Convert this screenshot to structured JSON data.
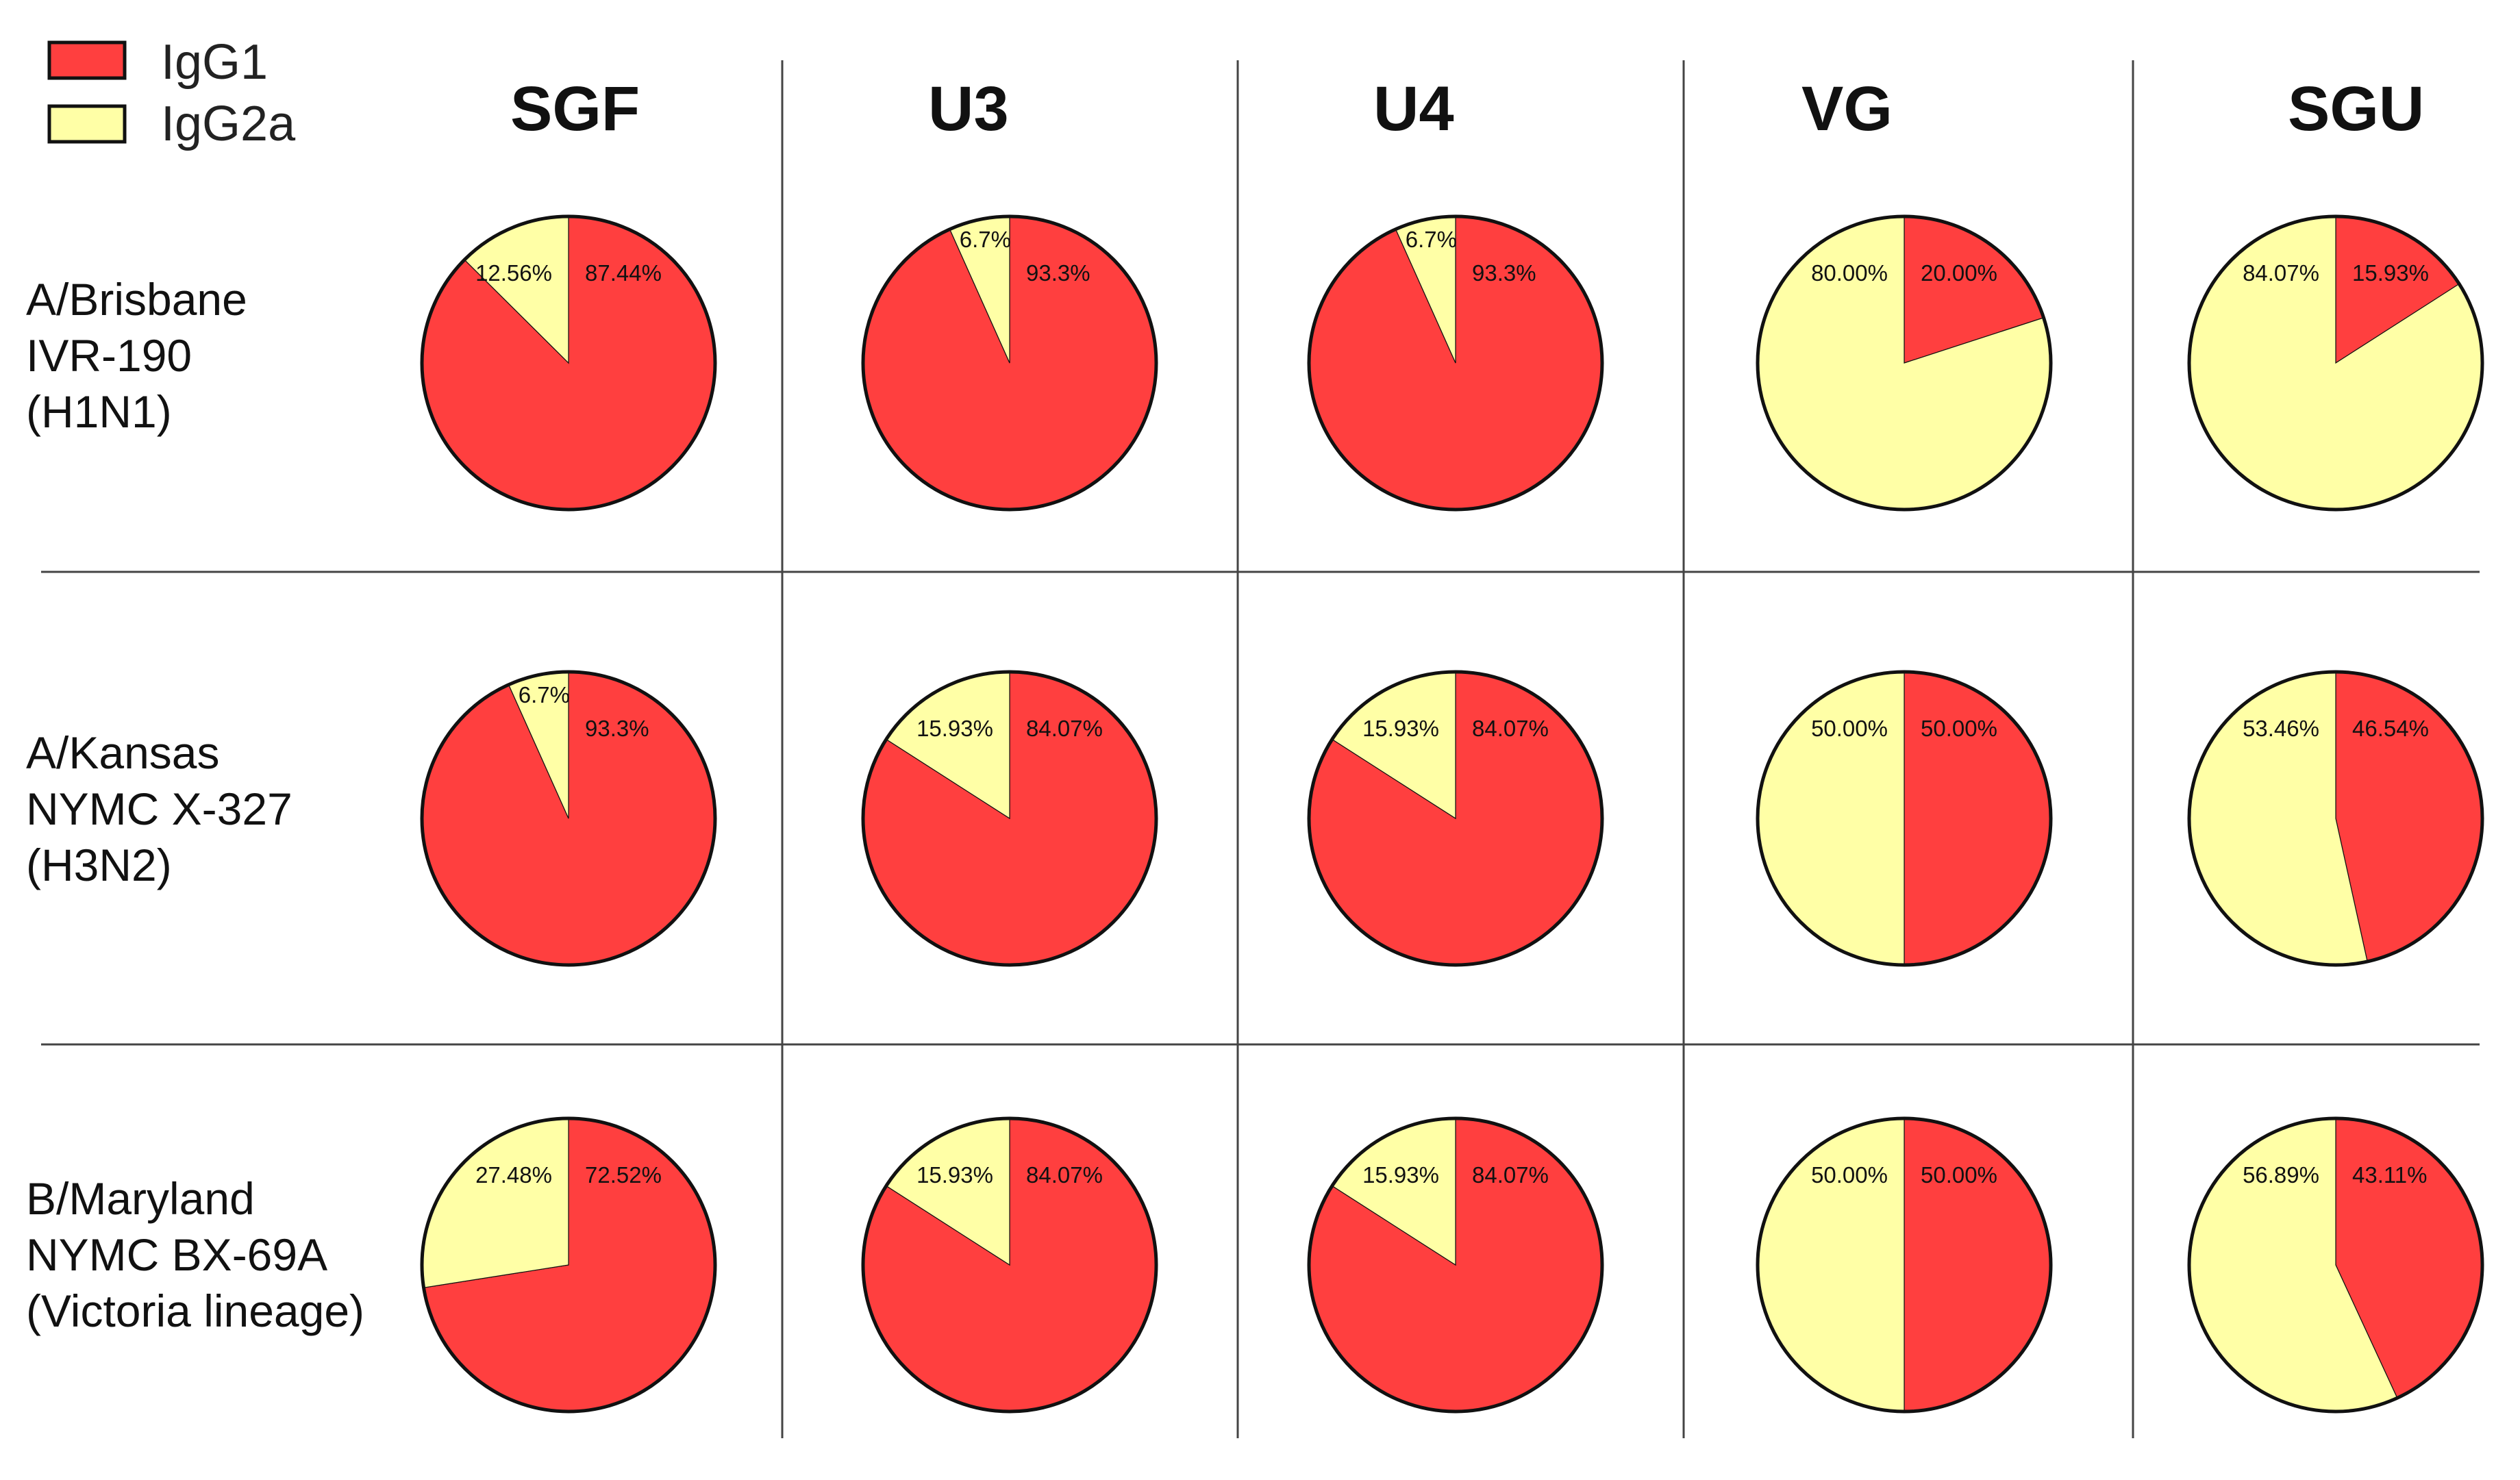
{
  "colors": {
    "IgG1": "#ff3f3f",
    "IgG2a": "#ffffa6"
  },
  "chart_data": {
    "type": "pie",
    "title": "",
    "legend": [
      "IgG1",
      "IgG2a"
    ],
    "legend_position": "top-left",
    "columns": [
      "SGF",
      "U3",
      "U4",
      "VG",
      "SGU"
    ],
    "rows": [
      {
        "label_lines": [
          "A/Brisbane",
          "IVR-190",
          "(H1N1)"
        ]
      },
      {
        "label_lines": [
          "A/Kansas",
          "NYMC X-327",
          "(H3N2)"
        ]
      },
      {
        "label_lines": [
          "B/Maryland",
          "NYMC BX-69A",
          "(Victoria lineage)"
        ]
      }
    ],
    "pies": [
      [
        {
          "IgG1": 87.44,
          "IgG2a": 12.56,
          "IgG1_label": "87.44%",
          "IgG2a_label": "12.56%"
        },
        {
          "IgG1": 93.3,
          "IgG2a": 6.7,
          "IgG1_label": "93.3%",
          "IgG2a_label": "6.7%"
        },
        {
          "IgG1": 93.3,
          "IgG2a": 6.7,
          "IgG1_label": "93.3%",
          "IgG2a_label": "6.7%"
        },
        {
          "IgG1": 20.0,
          "IgG2a": 80.0,
          "IgG1_label": "20.00%",
          "IgG2a_label": "80.00%"
        },
        {
          "IgG1": 15.93,
          "IgG2a": 84.07,
          "IgG1_label": "15.93%",
          "IgG2a_label": "84.07%"
        }
      ],
      [
        {
          "IgG1": 93.3,
          "IgG2a": 6.7,
          "IgG1_label": "93.3%",
          "IgG2a_label": "6.7%"
        },
        {
          "IgG1": 84.07,
          "IgG2a": 15.93,
          "IgG1_label": "84.07%",
          "IgG2a_label": "15.93%"
        },
        {
          "IgG1": 84.07,
          "IgG2a": 15.93,
          "IgG1_label": "84.07%",
          "IgG2a_label": "15.93%"
        },
        {
          "IgG1": 50.0,
          "IgG2a": 50.0,
          "IgG1_label": "50.00%",
          "IgG2a_label": "50.00%"
        },
        {
          "IgG1": 46.54,
          "IgG2a": 53.46,
          "IgG1_label": "46.54%",
          "IgG2a_label": "53.46%"
        }
      ],
      [
        {
          "IgG1": 72.52,
          "IgG2a": 27.48,
          "IgG1_label": "72.52%",
          "IgG2a_label": "27.48%"
        },
        {
          "IgG1": 84.07,
          "IgG2a": 15.93,
          "IgG1_label": "84.07%",
          "IgG2a_label": "15.93%"
        },
        {
          "IgG1": 84.07,
          "IgG2a": 15.93,
          "IgG1_label": "84.07%",
          "IgG2a_label": "15.93%"
        },
        {
          "IgG1": 50.0,
          "IgG2a": 50.0,
          "IgG1_label": "50.00%",
          "IgG2a_label": "50.00%"
        },
        {
          "IgG1": 43.11,
          "IgG2a": 56.89,
          "IgG1_label": "43.11%",
          "IgG2a_label": "56.89%"
        }
      ]
    ]
  }
}
